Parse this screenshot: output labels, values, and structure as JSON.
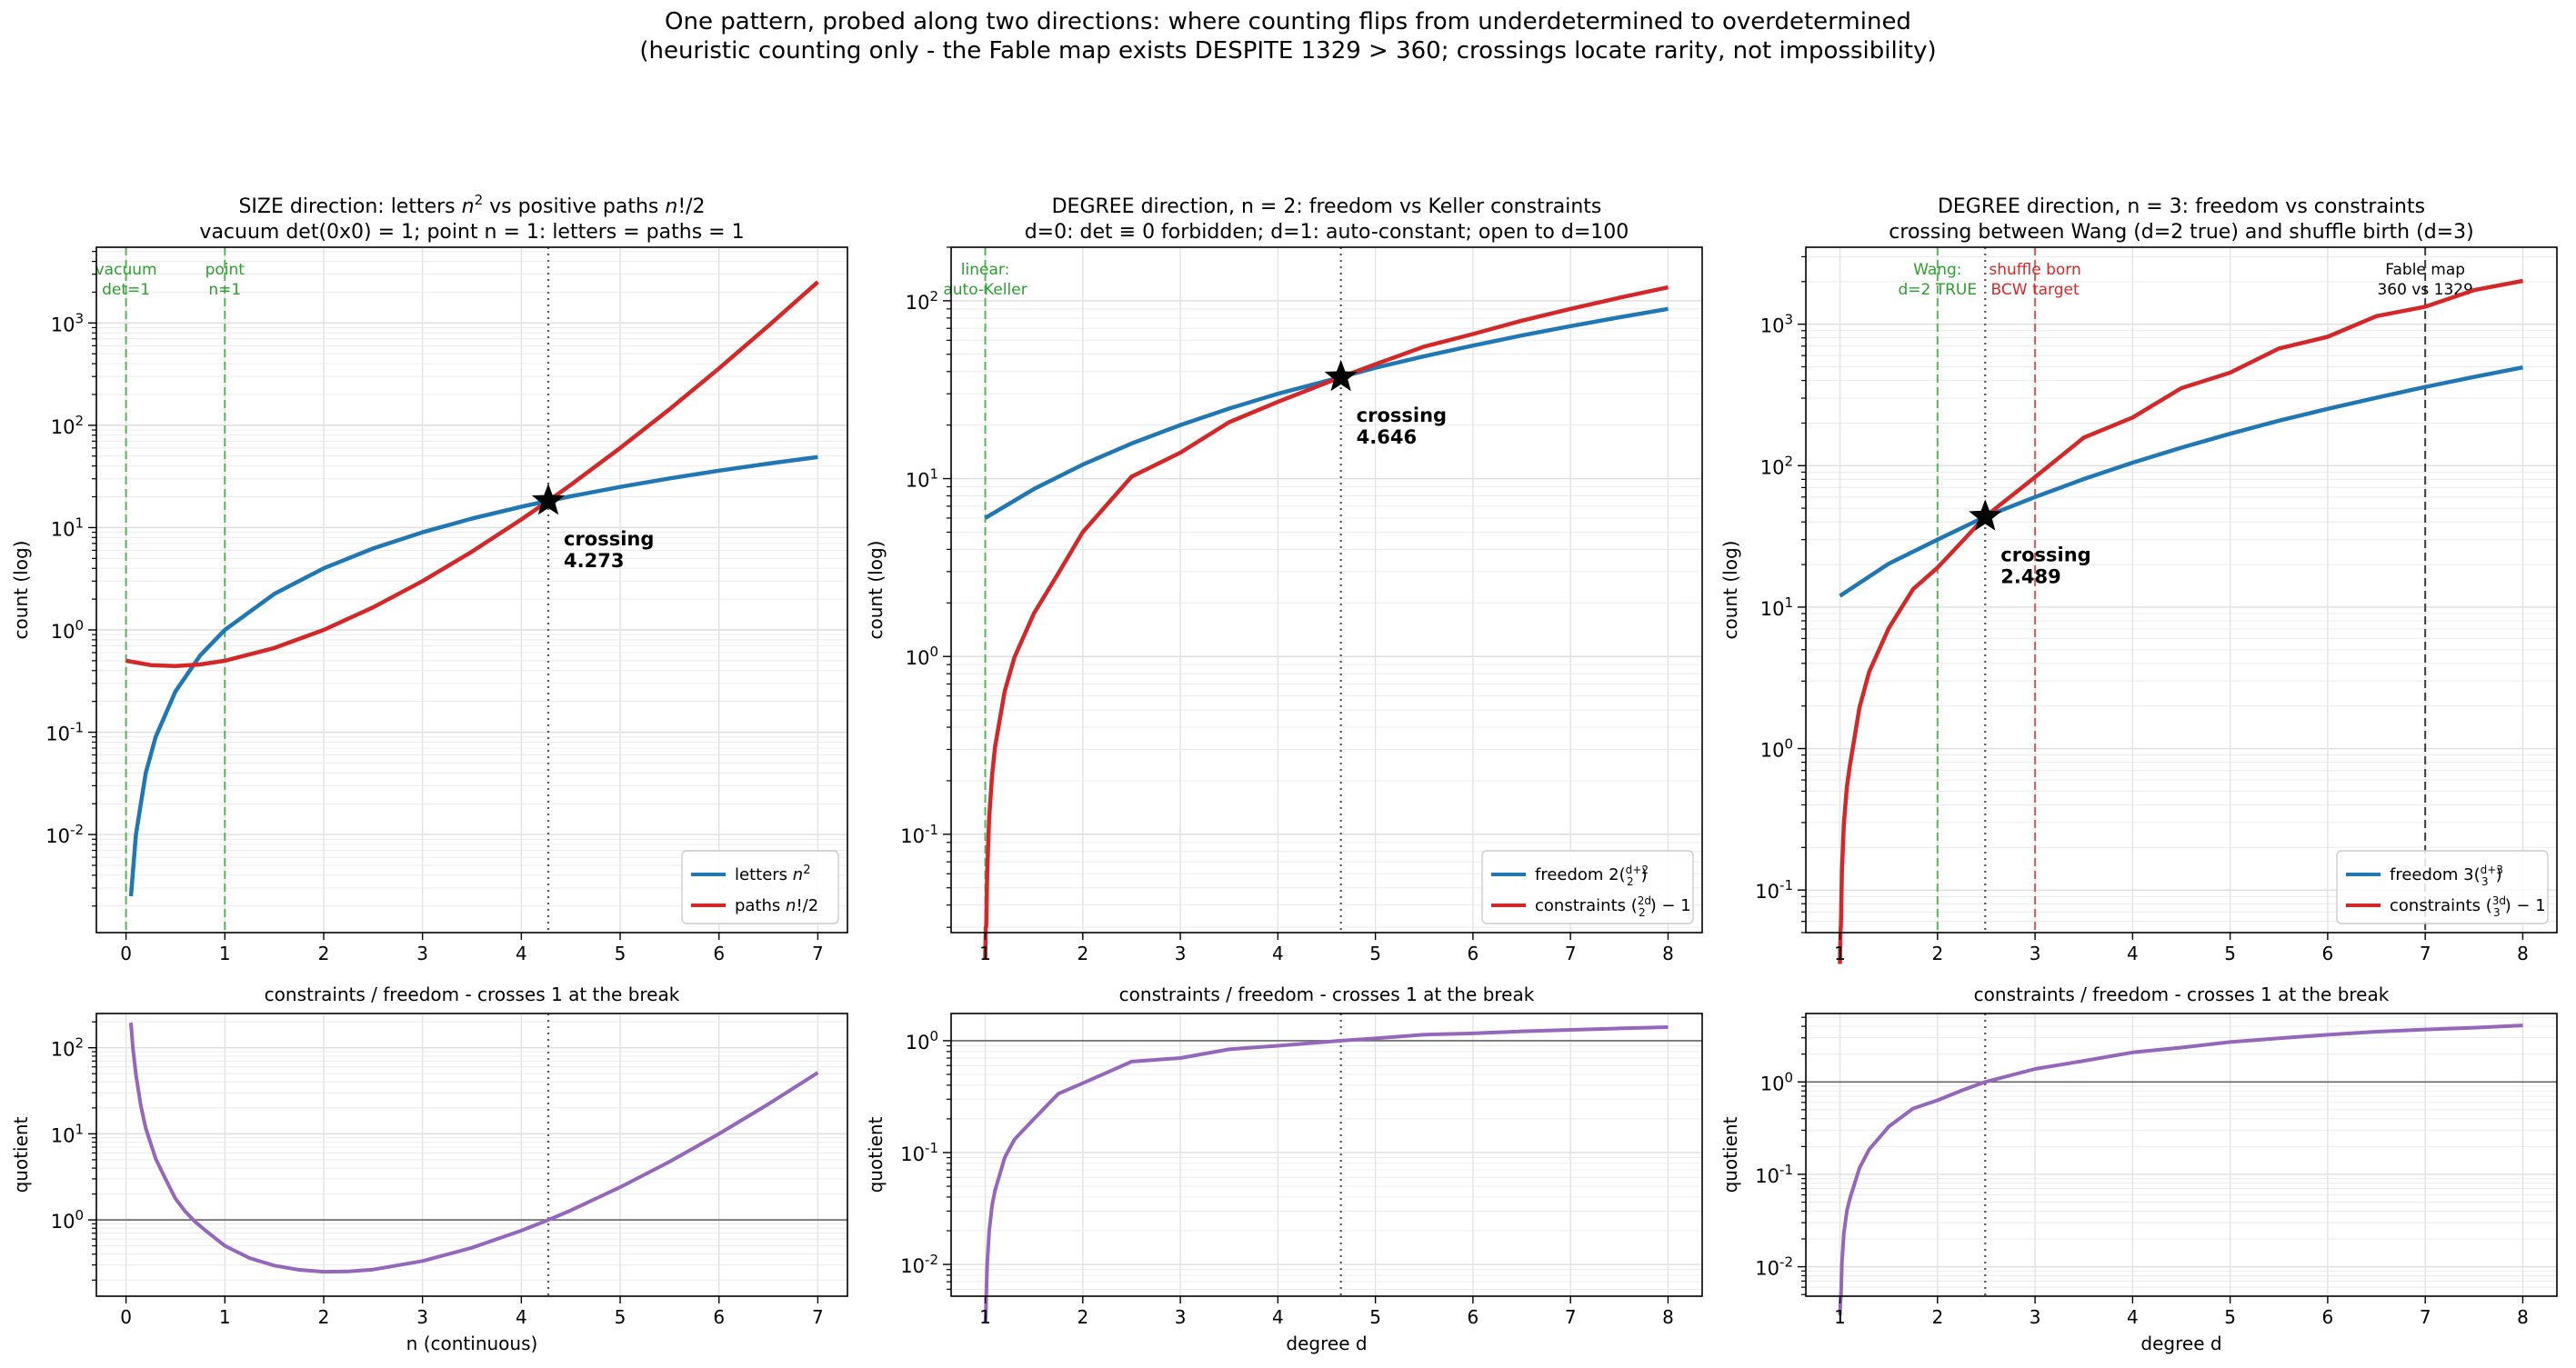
{
  "figure": {
    "suptitle_line1": "One pattern, probed along two directions: where counting flips from underdetermined to overdetermined",
    "suptitle_line2": "(heuristic counting only - the Fable map exists DESPITE 1329 > 360; crossings locate rarity, not impossibility)"
  },
  "colors": {
    "letters_freedom": "#1f77b4",
    "paths_constraints": "#d62728",
    "quotient": "#9467bd",
    "marker_green": "#2ca02c",
    "marker_red": "#d62728",
    "marker_gray": "#555555"
  },
  "chart_data": [
    {
      "id": "size",
      "type": "line",
      "title_line1": "SIZE direction: letters n² vs positive paths n!/2",
      "title_line2": "vacuum det(0x0) = 1;  point n = 1: letters = paths = 1",
      "ylabel": "count (log)",
      "yscale": "log",
      "xlim": [
        -0.3,
        7.3
      ],
      "ylim": [
        0.0011,
        5500
      ],
      "xticks": [
        "0",
        "1",
        "2",
        "3",
        "4",
        "5",
        "6",
        "7"
      ],
      "yticks": [
        {
          "exp": "-2",
          "value": 0.01
        },
        {
          "exp": "-1",
          "value": 0.1
        },
        {
          "exp": "0",
          "value": 1
        },
        {
          "exp": "1",
          "value": 10
        },
        {
          "exp": "2",
          "value": 100
        },
        {
          "exp": "3",
          "value": 1000
        }
      ],
      "series": [
        {
          "name": "letters n²",
          "color": "#1f77b4",
          "x": [
            0.05,
            0.1,
            0.2,
            0.3,
            0.5,
            0.75,
            1,
            1.5,
            2,
            2.5,
            3,
            3.5,
            4,
            4.273,
            4.5,
            5,
            5.5,
            6,
            6.5,
            7
          ],
          "y": [
            0.0025,
            0.01,
            0.04,
            0.09,
            0.25,
            0.5625,
            1,
            2.25,
            4,
            6.25,
            9,
            12.25,
            16,
            18.26,
            20.25,
            25,
            30.25,
            36,
            42.25,
            49
          ]
        },
        {
          "name": "paths n!/2",
          "color": "#d62728",
          "x": [
            0,
            0.25,
            0.5,
            0.75,
            1,
            1.5,
            2,
            2.5,
            3,
            3.5,
            4,
            4.273,
            4.5,
            5,
            5.5,
            6,
            6.5,
            7
          ],
          "y": [
            0.5,
            0.453,
            0.443,
            0.46,
            0.5,
            0.665,
            1,
            1.66,
            3,
            5.82,
            12,
            18.26,
            26.2,
            60,
            143.7,
            360,
            938.6,
            2520
          ]
        }
      ],
      "crossing": {
        "x": 4.273,
        "y": 18.26,
        "label": "crossing",
        "value": "4.273"
      },
      "vlines": [
        {
          "x": 0,
          "color": "#2ca02c",
          "dash": "dashed",
          "label1": "vacuum",
          "label2": "det=1"
        },
        {
          "x": 1,
          "color": "#2ca02c",
          "dash": "dashed",
          "label1": "point",
          "label2": "n=1"
        }
      ],
      "legend": "lower right",
      "legend_entries": [
        "letters n²",
        "paths n!/2"
      ],
      "quotient": {
        "title": "constraints / freedom - crosses 1 at the break",
        "xlabel": "n (continuous)",
        "ylabel": "quotient",
        "ylim": [
          0.13,
          250
        ],
        "yticks": [
          {
            "exp": "0",
            "value": 1
          },
          {
            "exp": "1",
            "value": 10
          },
          {
            "exp": "2",
            "value": 100
          }
        ],
        "x": [
          0.05,
          0.07,
          0.1,
          0.15,
          0.2,
          0.3,
          0.4,
          0.5,
          0.6,
          0.7,
          0.8,
          1,
          1.25,
          1.5,
          1.75,
          2,
          2.25,
          2.5,
          3,
          3.5,
          4,
          4.273,
          4.5,
          5,
          5.5,
          6,
          6.5,
          7
        ],
        "y": [
          195,
          98,
          48.8,
          21.1,
          11.6,
          5.15,
          2.98,
          1.77,
          1.25,
          0.95,
          0.76,
          0.5,
          0.36,
          0.295,
          0.263,
          0.25,
          0.252,
          0.265,
          0.333,
          0.475,
          0.75,
          1.0,
          1.29,
          2.4,
          4.75,
          10,
          22.2,
          51.4
        ]
      }
    },
    {
      "id": "degree2",
      "type": "line",
      "title_line1": "DEGREE direction, n = 2: freedom vs Keller constraints",
      "title_line2": "d=0: det ≡ 0 forbidden;  d=1: auto-constant;  open to d=100",
      "ylabel": "count (log)",
      "yscale": "log",
      "xlim": [
        0.65,
        8.35
      ],
      "ylim": [
        0.028,
        200
      ],
      "xticks": [
        "1",
        "2",
        "3",
        "4",
        "5",
        "6",
        "7",
        "8"
      ],
      "yticks": [
        {
          "exp": "-1",
          "value": 0.1
        },
        {
          "exp": "0",
          "value": 1
        },
        {
          "exp": "1",
          "value": 10
        },
        {
          "exp": "2",
          "value": 100
        }
      ],
      "series": [
        {
          "name": "freedom 2(d+2 choose 2)",
          "color": "#1f77b4",
          "x": [
            1,
            1.5,
            2,
            2.5,
            3,
            3.5,
            4,
            4.646,
            5,
            5.5,
            6,
            6.5,
            7,
            7.5,
            8
          ],
          "y": [
            6,
            8.75,
            12,
            15.75,
            20,
            24.75,
            30,
            37.2,
            42,
            48.75,
            56,
            63.75,
            72,
            80.75,
            90
          ]
        },
        {
          "name": "constraints (2d choose 2) − 1",
          "color": "#d62728",
          "x": [
            1.0,
            1.005,
            1.01,
            1.02,
            1.04,
            1.07,
            1.1,
            1.2,
            1.3,
            1.5,
            1.75,
            2,
            2.5,
            3,
            3.5,
            4,
            4.646,
            5,
            5.5,
            6,
            6.5,
            7,
            7.5,
            8
          ],
          "y": [
            0.02,
            0.03,
            0.0302,
            0.0608,
            0.123,
            0.216,
            0.31,
            0.64,
            0.99,
            1.75,
            2.94,
            5,
            10.25,
            14,
            20.75,
            27,
            37.2,
            44,
            55.25,
            65,
            77.25,
            90,
            104,
            119
          ]
        }
      ],
      "crossing": {
        "x": 4.646,
        "y": 37.2,
        "label": "crossing",
        "value": "4.646"
      },
      "vlines": [
        {
          "x": 1,
          "color": "#2ca02c",
          "dash": "dashed",
          "label1": "linear:",
          "label2": "auto-Keller"
        }
      ],
      "legend": "lower right",
      "legend_entries": [
        "freedom ",
        "constraints "
      ],
      "quotient": {
        "title": "constraints / freedom - crosses 1 at the break",
        "xlabel": "degree d",
        "ylabel": "quotient",
        "ylim": [
          0.0052,
          1.75
        ],
        "yticks": [
          {
            "exp": "-2",
            "value": 0.01
          },
          {
            "exp": "-1",
            "value": 0.1
          },
          {
            "exp": "0",
            "value": 1
          }
        ],
        "x": [
          1.0,
          1.005,
          1.01,
          1.02,
          1.04,
          1.07,
          1.1,
          1.2,
          1.3,
          1.5,
          1.75,
          2,
          2.5,
          3,
          3.5,
          4,
          4.646,
          5,
          5.5,
          6,
          6.5,
          7,
          7.5,
          8
        ],
        "y": [
          0.003,
          0.0034,
          0.0051,
          0.0101,
          0.0196,
          0.0339,
          0.0458,
          0.0904,
          0.131,
          0.2,
          0.336,
          0.417,
          0.651,
          0.7,
          0.838,
          0.9,
          1.0,
          1.048,
          1.133,
          1.161,
          1.212,
          1.25,
          1.288,
          1.322
        ]
      }
    },
    {
      "id": "degree3",
      "type": "line",
      "title_line1": "DEGREE direction, n = 3: freedom vs constraints",
      "title_line2": "crossing between Wang (d=2 true) and shuffle birth (d=3)",
      "ylabel": "count (log)",
      "yscale": "log",
      "xlim": [
        0.65,
        8.35
      ],
      "ylim": [
        0.05,
        3500
      ],
      "xticks": [
        "1",
        "2",
        "3",
        "4",
        "5",
        "6",
        "7",
        "8"
      ],
      "yticks": [
        {
          "exp": "-1",
          "value": 0.1
        },
        {
          "exp": "0",
          "value": 1
        },
        {
          "exp": "1",
          "value": 10
        },
        {
          "exp": "2",
          "value": 100
        },
        {
          "exp": "3",
          "value": 1000
        }
      ],
      "series": [
        {
          "name": "freedom 3(d+3 choose 3)",
          "color": "#1f77b4",
          "x": [
            1,
            1.5,
            2,
            2.489,
            3,
            3.5,
            4,
            4.5,
            5,
            5.5,
            6,
            6.5,
            7,
            7.5,
            8
          ],
          "y": [
            12,
            20.3,
            30,
            43.6,
            60,
            80.4,
            105,
            134,
            168,
            208,
            252,
            302,
            360,
            424,
            495
          ]
        },
        {
          "name": "constraints (3d choose 3) − 1",
          "color": "#d62728",
          "x": [
            1.0,
            1.005,
            1.01,
            1.02,
            1.04,
            1.07,
            1.1,
            1.2,
            1.3,
            1.5,
            1.75,
            2,
            2.25,
            2.489,
            3,
            3.5,
            4,
            4.5,
            5,
            5.5,
            6,
            6.5,
            7,
            7.5,
            8
          ],
          "y": [
            0.03,
            0.05,
            0.057,
            0.137,
            0.293,
            0.534,
            0.75,
            1.95,
            3.5,
            7.1,
            13.4,
            19,
            29,
            43.6,
            83,
            158,
            219,
            353,
            454,
            673,
            815,
            1140,
            1329,
            1740,
            2023
          ]
        }
      ],
      "crossing": {
        "x": 2.489,
        "y": 43.6,
        "label": "crossing",
        "value": "2.489"
      },
      "vlines": [
        {
          "x": 2,
          "color": "#2ca02c",
          "dash": "dashed",
          "label1": "Wang:",
          "label2": "d=2 TRUE"
        },
        {
          "x": 3,
          "color": "#d62728",
          "dash": "dashed",
          "label1": "shuffle born",
          "label2": "BCW target"
        },
        {
          "x": 7,
          "color": "#000000",
          "dash": "dashed",
          "label1": "Fable map",
          "label2": "360 vs 1329"
        }
      ],
      "legend": "lower right",
      "legend_entries": [
        "freedom ",
        "constraints "
      ],
      "quotient": {
        "title": "constraints / freedom - crosses 1 at the break",
        "xlabel": "degree d",
        "ylabel": "quotient",
        "ylim": [
          0.0048,
          5.5
        ],
        "yticks": [
          {
            "exp": "-2",
            "value": 0.01
          },
          {
            "exp": "-1",
            "value": 0.1
          },
          {
            "exp": "0",
            "value": 1
          }
        ],
        "x": [
          1.0,
          1.005,
          1.01,
          1.02,
          1.04,
          1.07,
          1.1,
          1.2,
          1.3,
          1.5,
          1.75,
          2,
          2.25,
          2.489,
          3,
          3.5,
          4,
          4.5,
          5,
          5.5,
          6,
          6.5,
          7,
          7.5,
          8
        ],
        "y": [
          0.003,
          0.0042,
          0.0047,
          0.0111,
          0.023,
          0.04,
          0.054,
          0.117,
          0.186,
          0.329,
          0.516,
          0.633,
          0.81,
          1.0,
          1.383,
          1.69,
          2.086,
          2.35,
          2.7,
          2.97,
          3.234,
          3.5,
          3.69,
          3.86,
          4.09
        ]
      }
    }
  ]
}
